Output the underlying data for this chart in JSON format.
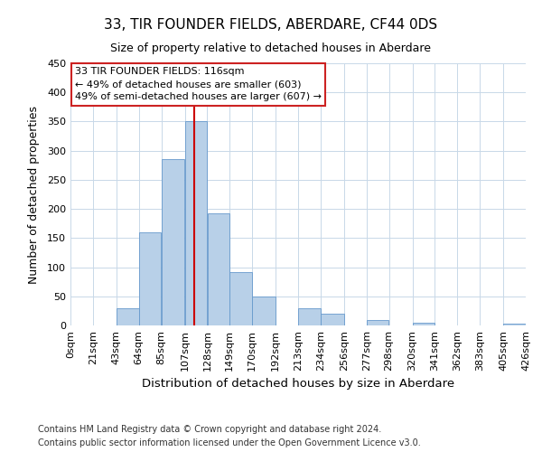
{
  "title": "33, TIR FOUNDER FIELDS, ABERDARE, CF44 0DS",
  "subtitle": "Size of property relative to detached houses in Aberdare",
  "xlabel": "Distribution of detached houses by size in Aberdare",
  "ylabel": "Number of detached properties",
  "bar_edges": [
    0,
    21,
    43,
    64,
    85,
    107,
    128,
    149,
    170,
    192,
    213,
    234,
    256,
    277,
    298,
    320,
    341,
    362,
    383,
    405,
    426
  ],
  "bar_heights": [
    0,
    0,
    30,
    160,
    285,
    350,
    193,
    92,
    50,
    0,
    30,
    20,
    0,
    10,
    0,
    5,
    0,
    0,
    0,
    3
  ],
  "bar_color": "#b8d0e8",
  "bar_edgecolor": "#6699cc",
  "vline_x": 116,
  "vline_color": "#cc0000",
  "ylim": [
    0,
    450
  ],
  "annotation_line1": "33 TIR FOUNDER FIELDS: 116sqm",
  "annotation_line2": "← 49% of detached houses are smaller (603)",
  "annotation_line3": "49% of semi-detached houses are larger (607) →",
  "footer_line1": "Contains HM Land Registry data © Crown copyright and database right 2024.",
  "footer_line2": "Contains public sector information licensed under the Open Government Licence v3.0.",
  "tick_labels": [
    "0sqm",
    "21sqm",
    "43sqm",
    "64sqm",
    "85sqm",
    "107sqm",
    "128sqm",
    "149sqm",
    "170sqm",
    "192sqm",
    "213sqm",
    "234sqm",
    "256sqm",
    "277sqm",
    "298sqm",
    "320sqm",
    "341sqm",
    "362sqm",
    "383sqm",
    "405sqm",
    "426sqm"
  ],
  "background_color": "#ffffff",
  "grid_color": "#c8d8e8"
}
